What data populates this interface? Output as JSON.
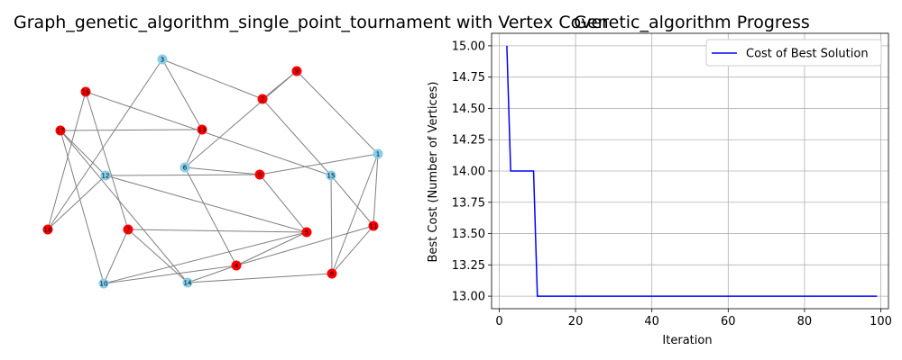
{
  "graph": {
    "title": "Graph_genetic_algorithm_single_point_tournament with Vertex Cover",
    "colors": {
      "cover": "#ff0000",
      "uncovered": "#87ceeb",
      "edge": "#808080"
    },
    "nodes": [
      {
        "id": "0",
        "in_cover": true
      },
      {
        "id": "1",
        "in_cover": false
      },
      {
        "id": "2",
        "in_cover": true
      },
      {
        "id": "3",
        "in_cover": false
      },
      {
        "id": "4",
        "in_cover": true
      },
      {
        "id": "5",
        "in_cover": true
      },
      {
        "id": "6",
        "in_cover": false
      },
      {
        "id": "7",
        "in_cover": true
      },
      {
        "id": "8",
        "in_cover": true
      },
      {
        "id": "9",
        "in_cover": true
      },
      {
        "id": "10",
        "in_cover": false
      },
      {
        "id": "11",
        "in_cover": true
      },
      {
        "id": "12",
        "in_cover": false
      },
      {
        "id": "13",
        "in_cover": true
      },
      {
        "id": "14",
        "in_cover": false
      },
      {
        "id": "15",
        "in_cover": false
      },
      {
        "id": "16",
        "in_cover": true
      },
      {
        "id": "17",
        "in_cover": true
      },
      {
        "id": "18",
        "in_cover": true
      }
    ],
    "edges": [
      [
        "3",
        "2"
      ],
      [
        "3",
        "18"
      ],
      [
        "3",
        "13"
      ],
      [
        "18",
        "16"
      ],
      [
        "18",
        "12"
      ],
      [
        "9",
        "2"
      ],
      [
        "9",
        "6"
      ],
      [
        "9",
        "1"
      ],
      [
        "2",
        "15"
      ],
      [
        "16",
        "15"
      ],
      [
        "16",
        "7"
      ],
      [
        "13",
        "6"
      ],
      [
        "13",
        "17"
      ],
      [
        "6",
        "0"
      ],
      [
        "6",
        "4"
      ],
      [
        "12",
        "0"
      ],
      [
        "12",
        "17"
      ],
      [
        "12",
        "5"
      ],
      [
        "1",
        "0"
      ],
      [
        "1",
        "11"
      ],
      [
        "1",
        "8"
      ],
      [
        "15",
        "11"
      ],
      [
        "15",
        "8"
      ],
      [
        "0",
        "5"
      ],
      [
        "17",
        "10"
      ],
      [
        "17",
        "14"
      ],
      [
        "7",
        "5"
      ],
      [
        "7",
        "14"
      ],
      [
        "5",
        "10"
      ],
      [
        "5",
        "4"
      ],
      [
        "11",
        "4"
      ],
      [
        "11",
        "8"
      ],
      [
        "4",
        "14"
      ],
      [
        "8",
        "14"
      ],
      [
        "10",
        "4"
      ],
      [
        "10",
        "7"
      ]
    ]
  },
  "chart_data": {
    "type": "line",
    "title": "Genetic_algorithm Progress",
    "xlabel": "Iteration",
    "ylabel": "Best Cost (Number of Vertices)",
    "xlim": [
      -2,
      102
    ],
    "ylim": [
      12.9,
      15.1
    ],
    "xticks": [
      "0",
      "20",
      "40",
      "60",
      "80",
      "100"
    ],
    "yticks": [
      "13.00",
      "13.25",
      "13.50",
      "13.75",
      "14.00",
      "14.25",
      "14.50",
      "14.75",
      "15.00"
    ],
    "grid": true,
    "legend_position": "top-right",
    "series": [
      {
        "name": "Cost of Best Solution",
        "color": "#0000ff",
        "x": [
          2,
          3,
          4,
          5,
          6,
          7,
          8,
          9,
          10,
          11,
          20,
          40,
          60,
          80,
          99
        ],
        "y": [
          15,
          14,
          14,
          14,
          14,
          14,
          14,
          14,
          13,
          13,
          13,
          13,
          13,
          13,
          13
        ]
      }
    ]
  }
}
